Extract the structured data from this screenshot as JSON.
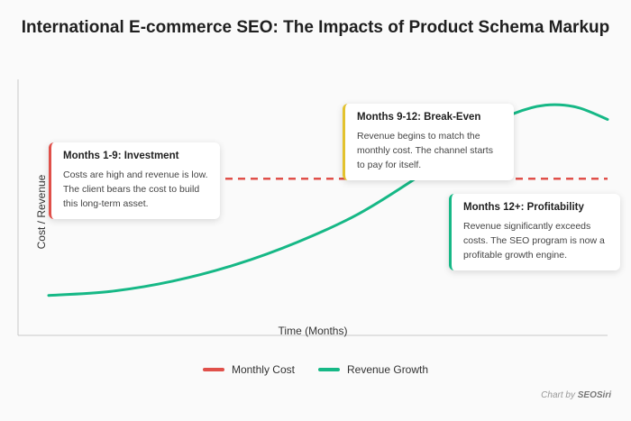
{
  "chart_data": {
    "type": "line",
    "title": "International E-commerce SEO: The Impacts of Product Schema Markup",
    "xlabel": "Time (Months)",
    "ylabel": "Cost / Revenue",
    "x_range": [
      0,
      18
    ],
    "y_range": [
      0,
      100
    ],
    "grid": false,
    "legend_position": "bottom",
    "series": [
      {
        "name": "Monthly Cost",
        "style": "dashed",
        "color": "#e0504a",
        "x": [
          0,
          18
        ],
        "y": [
          58,
          58
        ]
      },
      {
        "name": "Revenue Growth",
        "style": "solid",
        "color": "#16b886",
        "x": [
          0,
          2,
          4,
          6,
          8,
          10,
          12,
          13,
          14,
          15,
          16,
          17,
          18
        ],
        "y": [
          1,
          3,
          8,
          16,
          27,
          41,
          60,
          71,
          82,
          90,
          94,
          93,
          87
        ]
      }
    ],
    "annotations": [
      {
        "heading": "Months 1-9: Investment",
        "text": "Costs are high and revenue is low. The client bears the cost to build this long-term asset.",
        "color": "#e0504a"
      },
      {
        "heading": "Months 9-12: Break-Even",
        "text": "Revenue begins to match the monthly cost. The channel starts to pay for itself.",
        "color": "#e3c22e"
      },
      {
        "heading": "Months 12+: Profitability",
        "text": "Revenue significantly exceeds costs. The SEO program is now a profitable growth engine.",
        "color": "#16b886"
      }
    ]
  },
  "credit": {
    "prefix": "Chart by",
    "brand": "SEOSiri"
  }
}
